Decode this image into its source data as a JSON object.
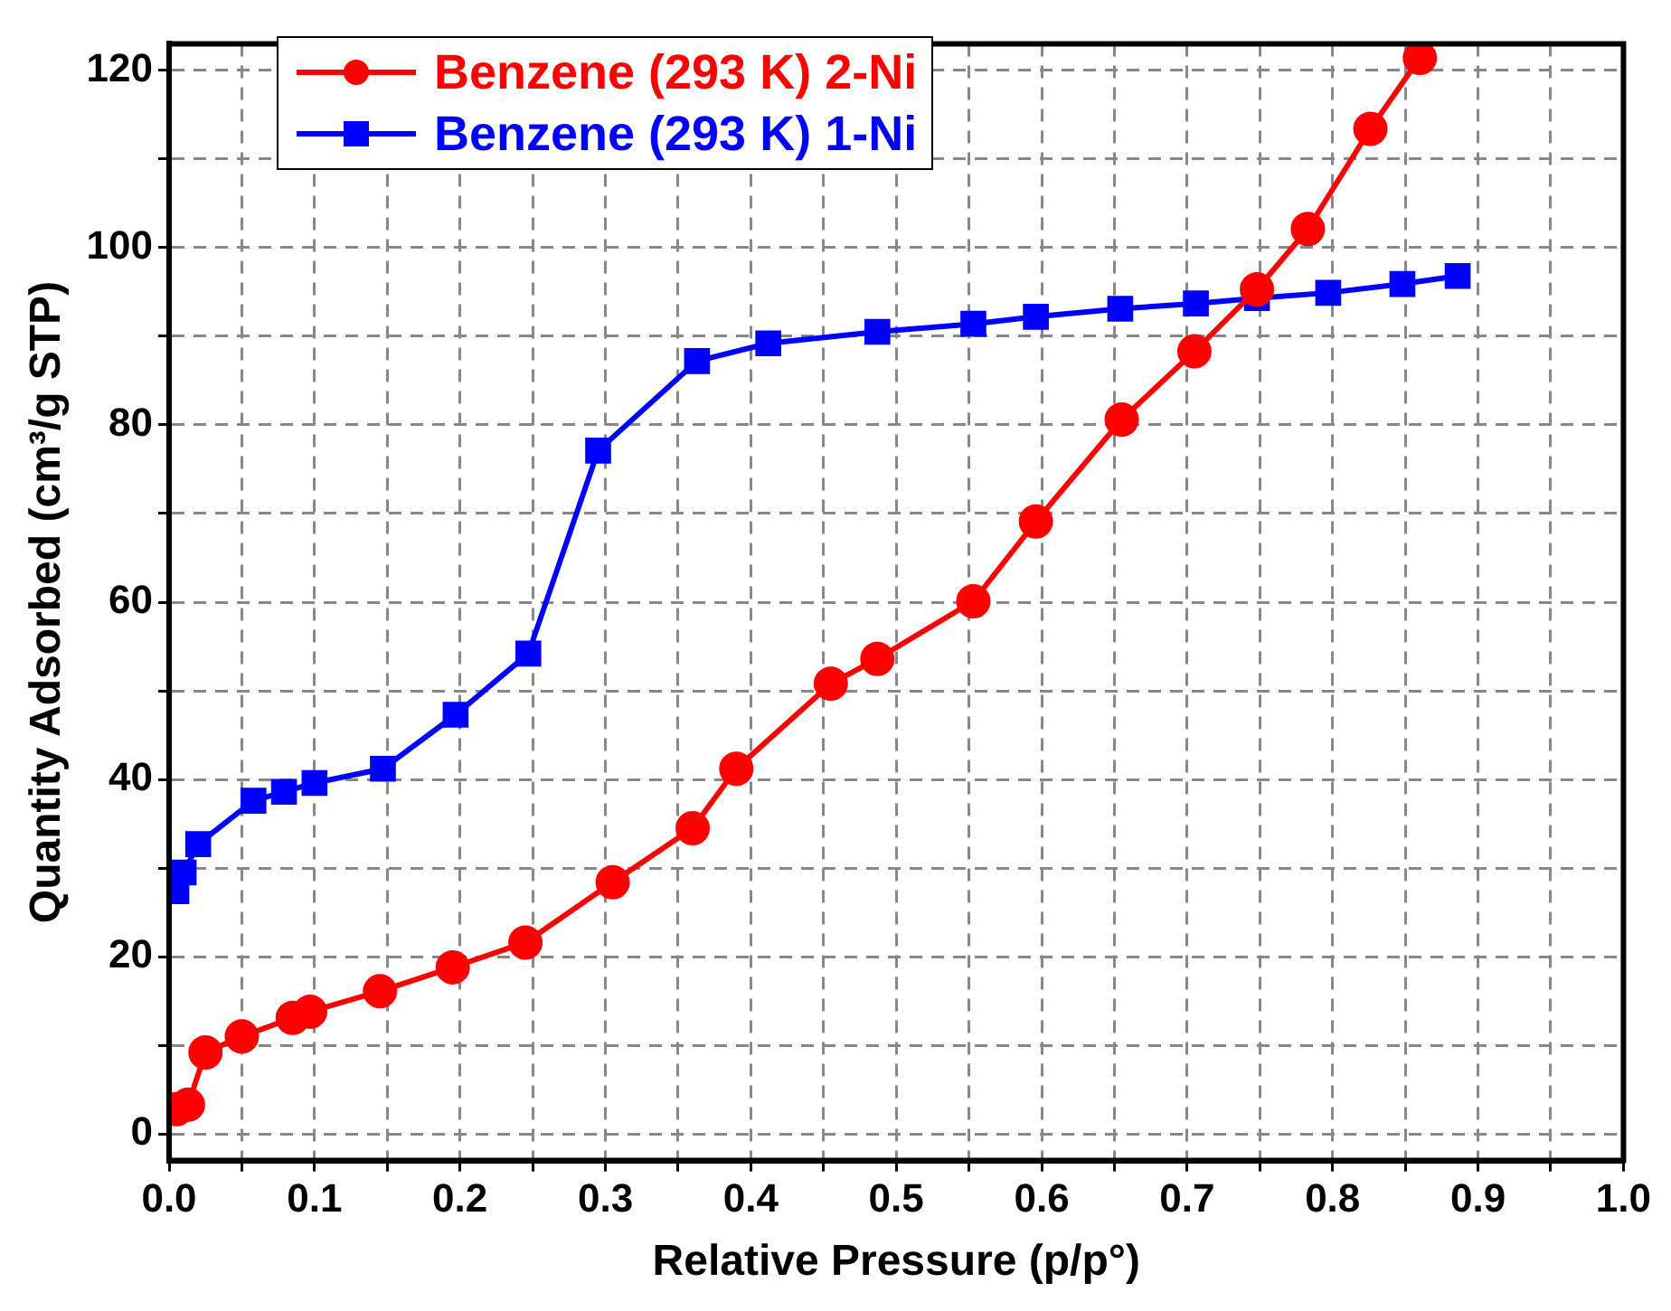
{
  "chart_data": {
    "type": "line",
    "xlabel": "Relative Pressure (p/p°)",
    "ylabel": "Quantity Adsorbed (cm³/g STP)",
    "xlim": [
      0,
      1.0
    ],
    "ylim": [
      -3,
      123
    ],
    "xticks": [
      {
        "value": 0,
        "label": "0.0"
      },
      {
        "value": 0.05,
        "label": null
      },
      0.1,
      {
        "value": 0.15,
        "label": null
      },
      0.2,
      {
        "value": 0.25,
        "label": null
      },
      0.3,
      {
        "value": 0.35,
        "label": null
      },
      0.4,
      {
        "value": 0.45,
        "label": null
      },
      0.5,
      {
        "value": 0.55,
        "label": null
      },
      0.6,
      {
        "value": 0.65,
        "label": null
      },
      0.7,
      {
        "value": 0.75,
        "label": null
      },
      0.8,
      {
        "value": 0.85,
        "label": null
      },
      0.9,
      {
        "value": 0.95,
        "label": null
      },
      {
        "value": 1,
        "label": "1.0"
      }
    ],
    "yticks": [
      0,
      {
        "value": 10,
        "label": null
      },
      20,
      {
        "value": 30,
        "label": null
      },
      40,
      {
        "value": 50,
        "label": null
      },
      60,
      {
        "value": 70,
        "label": null
      },
      80,
      {
        "value": 90,
        "label": null
      },
      100,
      {
        "value": 110,
        "label": null
      },
      120
    ],
    "grid": true,
    "legend": "top left",
    "series": [
      {
        "name": "Benzene (293 K) 2-Ni",
        "color": "#ff0000",
        "marker": "circle",
        "x": [
          0.005,
          0.013,
          0.025,
          0.05,
          0.085,
          0.097,
          0.145,
          0.195,
          0.245,
          0.305,
          0.36,
          0.39,
          0.455,
          0.487,
          0.553,
          0.596,
          0.655,
          0.705,
          0.748,
          0.783,
          0.826,
          0.86
        ],
        "values": [
          2.8,
          3.3,
          9.2,
          11.0,
          13.1,
          13.8,
          16.1,
          18.8,
          21.6,
          28.4,
          34.5,
          41.2,
          50.8,
          53.6,
          60.1,
          69.1,
          80.6,
          88.3,
          95.3,
          102.1,
          113.4,
          121.4
        ]
      },
      {
        "name": "Benzene (293 K) 1-Ni",
        "color": "#0000ff",
        "marker": "square",
        "x": [
          0.005,
          0.01,
          0.02,
          0.058,
          0.079,
          0.1,
          0.147,
          0.197,
          0.247,
          0.295,
          0.363,
          0.412,
          0.487,
          0.553,
          0.596,
          0.654,
          0.706,
          0.748,
          0.797,
          0.848,
          0.886
        ],
        "values": [
          27.4,
          29.5,
          32.7,
          37.6,
          38.6,
          39.6,
          41.2,
          47.3,
          54.2,
          77.1,
          87.2,
          89.2,
          90.5,
          91.4,
          92.2,
          93.1,
          93.7,
          94.3,
          94.9,
          95.9,
          96.8
        ]
      }
    ]
  }
}
